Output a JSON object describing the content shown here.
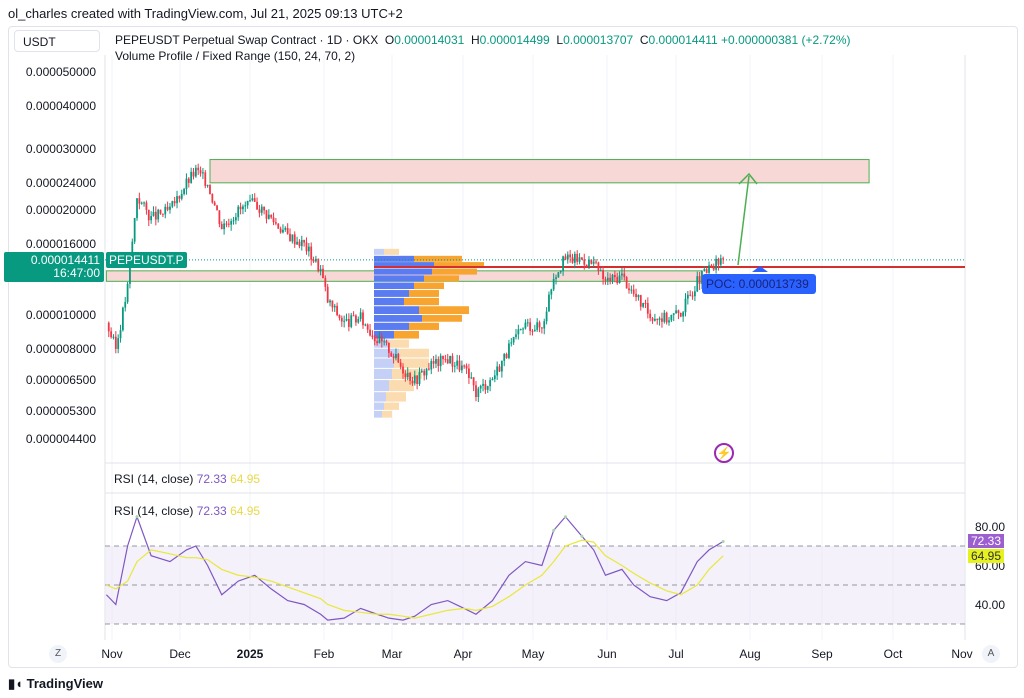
{
  "credit": "ol_charles created with TradingView.com, Jul 21, 2025 09:13 UTC+2",
  "currency": "USDT",
  "legend": {
    "title": "PEPEUSDT Perpetual Swap Contract · 1D · OKX",
    "o_label": "O",
    "o": "0.000014031",
    "h_label": "H",
    "h": "0.000014499",
    "l_label": "L",
    "l": "0.000013707",
    "c_label": "C",
    "c": "0.000014411",
    "change": "+0.000000381 (+2.72%)",
    "indicator": "Volume Profile / Fixed Range (150, 24, 70, 2)"
  },
  "last_price": {
    "value": "0.000014411",
    "countdown": "16:47:00",
    "symbol": "PEPEUSDT.P"
  },
  "poc_label": "POC: 0.000013739",
  "rsi": {
    "label": "RSI (14, close)",
    "value": "72.33",
    "ma": "64.95",
    "ticks": [
      "80.00",
      "60.00",
      "40.00"
    ]
  },
  "footer_logo": "TradingView",
  "buttons": {
    "z": "Z",
    "a": "A"
  },
  "colors": {
    "up": "#089981",
    "down": "#f23645",
    "rsi": "#7e57c2",
    "rsi_ma": "#e8e83a",
    "poc": "#d32f2f",
    "zone_fill": "#f8d7d7",
    "zone_border": "#4caf50",
    "arrow": "#4caf50",
    "poc_box": "#2962ff"
  },
  "chart_data": [
    {
      "type": "candlestick",
      "scale": "log",
      "y_ticks": [
        "0.000050000",
        "0.000040000",
        "0.000030000",
        "0.000024000",
        "0.000020000",
        "0.000016000",
        "0.000010000",
        "0.000008000",
        "0.000006500",
        "0.000005300",
        "0.000004400"
      ],
      "x_ticks": [
        "Nov",
        "Dec",
        "2025",
        "Feb",
        "Mar",
        "Apr",
        "May",
        "Jun",
        "Jul",
        "Aug",
        "Sep",
        "Oct",
        "Nov"
      ],
      "dates": [
        "2024-11-01",
        "2024-11-05",
        "2024-11-10",
        "2024-11-14",
        "2024-11-20",
        "2024-11-28",
        "2024-12-05",
        "2024-12-09",
        "2024-12-14",
        "2024-12-20",
        "2024-12-27",
        "2025-01-03",
        "2025-01-10",
        "2025-01-17",
        "2025-01-24",
        "2025-01-31",
        "2025-02-03",
        "2025-02-10",
        "2025-02-17",
        "2025-02-24",
        "2025-03-01",
        "2025-03-07",
        "2025-03-12",
        "2025-03-19",
        "2025-03-26",
        "2025-04-02",
        "2025-04-07",
        "2025-04-14",
        "2025-04-21",
        "2025-04-28",
        "2025-05-05",
        "2025-05-10",
        "2025-05-15",
        "2025-05-22",
        "2025-05-27",
        "2025-06-01",
        "2025-06-08",
        "2025-06-13",
        "2025-06-20",
        "2025-06-27",
        "2025-07-03",
        "2025-07-10",
        "2025-07-15",
        "2025-07-21"
      ],
      "close": [
        9.5e-06,
        8e-06,
        1.2e-05,
        2.2e-05,
        1.9e-05,
        2e-05,
        2.4e-05,
        2.6e-05,
        2.4e-05,
        1.8e-05,
        2e-05,
        2.1e-05,
        1.9e-05,
        1.7e-05,
        1.6e-05,
        1.35e-05,
        1.1e-05,
        9.5e-06,
        9.8e-06,
        8.5e-06,
        8e-06,
        7e-06,
        6.5e-06,
        7.2e-06,
        7.5e-06,
        7e-06,
        6e-06,
        6.6e-06,
        8e-06,
        9.4e-06,
        9.2e-06,
        1.3e-05,
        1.45e-05,
        1.45e-05,
        1.4e-05,
        1.25e-05,
        1.3e-05,
        1.15e-05,
        1e-05,
        9.8e-06,
        1.02e-05,
        1.25e-05,
        1.35e-05,
        1.4411e-05
      ],
      "rsi": [
        45,
        40,
        70,
        85,
        65,
        62,
        68,
        70,
        60,
        45,
        52,
        55,
        48,
        42,
        40,
        35,
        32,
        33,
        38,
        35,
        33,
        32,
        34,
        40,
        42,
        38,
        35,
        42,
        55,
        62,
        60,
        78,
        85,
        75,
        68,
        55,
        58,
        50,
        44,
        42,
        46,
        62,
        68,
        72.33
      ],
      "rsi_ma": [
        50,
        48,
        52,
        62,
        68,
        66,
        64,
        64,
        63,
        58,
        55,
        54,
        52,
        49,
        46,
        43,
        40,
        37,
        36,
        35,
        35,
        34,
        33,
        35,
        37,
        38,
        37,
        39,
        44,
        50,
        55,
        62,
        70,
        73,
        72,
        65,
        60,
        56,
        51,
        47,
        45,
        50,
        58,
        64.95
      ],
      "zones": [
        {
          "from": "2024-12-15",
          "to": "2025-09-21",
          "low": 2.4e-05,
          "high": 2.8e-05
        },
        {
          "from": "2024-11-01",
          "to": "2025-07-12",
          "low": 1.25e-05,
          "high": 1.34e-05
        }
      ],
      "poc": 1.3739e-05,
      "volume_profile": {
        "levels": [
          1.55e-05,
          1.48e-05,
          1.42e-05,
          1.36e-05,
          1.3e-05,
          1.24e-05,
          1.18e-05,
          1.12e-05,
          1.06e-05,
          1e-05,
          9.5e-06,
          9e-06,
          8.5e-06,
          8e-06,
          7.5e-06,
          7e-06,
          6.5e-06,
          6e-06,
          5.6e-06,
          5.3e-06
        ],
        "up": [
          10,
          40,
          60,
          58,
          50,
          40,
          35,
          30,
          45,
          48,
          35,
          20,
          15,
          25,
          20,
          18,
          15,
          12,
          10,
          8
        ],
        "down": [
          15,
          48,
          50,
          45,
          35,
          30,
          30,
          35,
          50,
          40,
          30,
          25,
          20,
          30,
          35,
          30,
          25,
          20,
          15,
          10
        ]
      }
    }
  ]
}
